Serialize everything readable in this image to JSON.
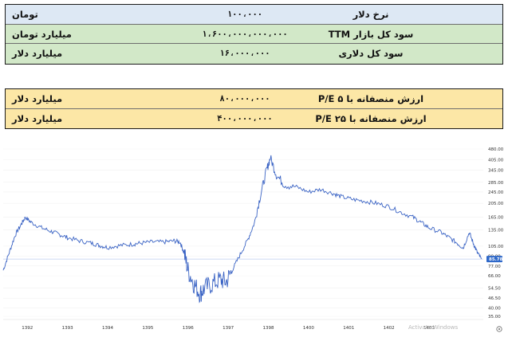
{
  "table_top": {
    "rows": [
      {
        "unit": "تومان",
        "value": "۱۰۰،۰۰۰",
        "label": "نرخ دلار"
      },
      {
        "unit": "میلیارد تومان",
        "value": "۱،۶۰۰،۰۰۰،۰۰۰،۰۰۰",
        "label": "سود کل بازار TTM"
      },
      {
        "unit": "میلیارد دلار",
        "value": "۱۶،۰۰۰،۰۰۰",
        "label": "سود کل دلاری"
      }
    ]
  },
  "table_bottom": {
    "rows": [
      {
        "unit": "میلیارد دلار",
        "value": "۸۰،۰۰۰،۰۰۰",
        "label": "ارزش منصفانه با P/E ۵"
      },
      {
        "unit": "میلیارد دلار",
        "value": "۴۰۰،۰۰۰،۰۰۰",
        "label": "ارزش منصفانه با P/E ۲۵"
      }
    ]
  },
  "watermark": "Activate Windows",
  "chart_data": {
    "type": "line",
    "title": "",
    "xlabel": "",
    "ylabel": "",
    "x_ticks": [
      "1392",
      "1393",
      "1394",
      "1395",
      "1396",
      "1397",
      "1398",
      "1400",
      "1401",
      "1402",
      "1403"
    ],
    "y_ticks": [
      480,
      405,
      345,
      285,
      245,
      205,
      165,
      135,
      105,
      90,
      77,
      66,
      54.5,
      46.5,
      40,
      35
    ],
    "y_tick_labels": [
      "480.00",
      "405.00",
      "345.00",
      "285.00",
      "245.00",
      "205.00",
      "165.00",
      "135.00",
      "105.00",
      "90.00",
      "77.00",
      "66.00",
      "54.50",
      "46.50",
      "40.00",
      "35.00"
    ],
    "ylim": [
      35,
      480
    ],
    "scale": "log",
    "line_color": "#3a63c4",
    "last_value": 85.78,
    "last_value_label": "85.78",
    "series": [
      {
        "name": "",
        "points": [
          [
            1391.6,
            72
          ],
          [
            1391.75,
            95
          ],
          [
            1391.9,
            125
          ],
          [
            1392.05,
            148
          ],
          [
            1392.15,
            165
          ],
          [
            1392.3,
            152
          ],
          [
            1392.55,
            140
          ],
          [
            1392.8,
            132
          ],
          [
            1393.0,
            126
          ],
          [
            1393.2,
            120
          ],
          [
            1393.5,
            114
          ],
          [
            1393.8,
            110
          ],
          [
            1394.0,
            106
          ],
          [
            1394.2,
            103
          ],
          [
            1394.5,
            106
          ],
          [
            1394.8,
            108
          ],
          [
            1395.0,
            110
          ],
          [
            1395.3,
            112
          ],
          [
            1395.6,
            112
          ],
          [
            1395.85,
            114
          ],
          [
            1396.0,
            112
          ],
          [
            1396.1,
            95
          ],
          [
            1396.2,
            72
          ],
          [
            1396.35,
            58
          ],
          [
            1396.5,
            50
          ],
          [
            1396.6,
            54
          ],
          [
            1396.8,
            58
          ],
          [
            1397.0,
            62
          ],
          [
            1397.15,
            60
          ],
          [
            1397.3,
            72
          ],
          [
            1397.5,
            92
          ],
          [
            1397.7,
            118
          ],
          [
            1397.85,
            150
          ],
          [
            1398.0,
            230
          ],
          [
            1398.15,
            340
          ],
          [
            1398.25,
            420
          ],
          [
            1398.4,
            320
          ],
          [
            1398.6,
            275
          ],
          [
            1398.9,
            265
          ],
          [
            1399.2,
            245
          ],
          [
            1399.5,
            255
          ],
          [
            1399.8,
            240
          ],
          [
            1400.0,
            228
          ],
          [
            1400.3,
            218
          ],
          [
            1400.6,
            212
          ],
          [
            1400.9,
            205
          ],
          [
            1401.2,
            195
          ],
          [
            1401.5,
            178
          ],
          [
            1401.8,
            165
          ],
          [
            1402.0,
            152
          ],
          [
            1402.2,
            140
          ],
          [
            1402.5,
            130
          ],
          [
            1402.7,
            120
          ],
          [
            1402.9,
            110
          ],
          [
            1403.05,
            102
          ],
          [
            1403.2,
            130
          ],
          [
            1403.3,
            110
          ],
          [
            1403.4,
            95
          ],
          [
            1403.5,
            85.78
          ]
        ]
      }
    ]
  }
}
